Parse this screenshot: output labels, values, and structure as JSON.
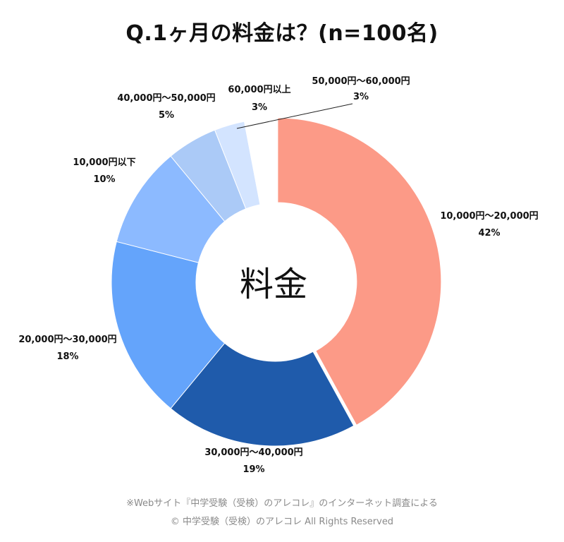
{
  "chart_data": {
    "type": "pie",
    "donut": true,
    "title": "Q.1ヶ月の料金は？(n=100名)",
    "center_label": "料金",
    "slices": [
      {
        "label": "10,000円〜20,000円",
        "value": 42,
        "display": "42%",
        "color": "#fc9a87",
        "explode": true
      },
      {
        "label": "30,000円〜40,000円",
        "value": 19,
        "display": "19%",
        "color": "#1f5bab"
      },
      {
        "label": "20,000円〜30,000円",
        "value": 18,
        "display": "18%",
        "color": "#64a4fb"
      },
      {
        "label": "10,000円以下",
        "value": 10,
        "display": "10%",
        "color": "#8cbaff"
      },
      {
        "label": "40,000円〜50,000円",
        "value": 5,
        "display": "5%",
        "color": "#abcaf7"
      },
      {
        "label": "50,000円〜60,000円",
        "value": 3,
        "display": "3%",
        "color": "#d3e4ff"
      },
      {
        "label": "60,000円以上",
        "value": 3,
        "display": "3%",
        "color": "#ffffff"
      }
    ]
  },
  "footer": {
    "source": "※Webサイト『中学受験（受検）のアレコレ』のインターネット調査による",
    "copyright": "© 中学受験（受検）のアレコレ All Rights Reserved"
  }
}
